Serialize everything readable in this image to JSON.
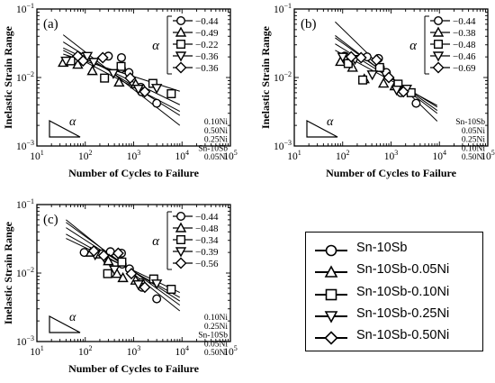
{
  "chart_data": [
    {
      "type": "scatter",
      "panel_label": "(a)",
      "xlabel": "Number of Cycles to Failure",
      "ylabel": "Inelastic Strain Range",
      "xscale": "log",
      "yscale": "log",
      "xlim": [
        10,
        100000
      ],
      "ylim": [
        0.001,
        0.1
      ],
      "xticks": [
        "10^1",
        "10^2",
        "10^3",
        "10^4",
        "10^5"
      ],
      "yticks": [
        "10^-3",
        "10^-2",
        "10^-1"
      ],
      "alpha_symbol": "α",
      "alpha_values": [
        "−0.44",
        "−0.49",
        "−0.22",
        "−0.36",
        "−0.36"
      ],
      "line_labels": [
        "0.10Ni",
        "0.50Ni",
        "0.25Ni",
        "Sn-10Sb",
        "0.05Ni"
      ],
      "series": [
        {
          "marker": "circle",
          "points": [
            [
              95,
              0.0203
            ],
            [
              300,
              0.0205
            ],
            [
              560,
              0.0195
            ],
            [
              560,
              0.0135
            ],
            [
              800,
              0.0118
            ],
            [
              1400,
              0.0072
            ],
            [
              1450,
              0.0062
            ],
            [
              3000,
              0.0042
            ]
          ]
        },
        {
          "marker": "triangle-up",
          "points": [
            [
              35,
              0.0165
            ],
            [
              70,
              0.0155
            ],
            [
              140,
              0.0125
            ],
            [
              500,
              0.0085
            ],
            [
              1100,
              0.008
            ]
          ]
        },
        {
          "marker": "square",
          "points": [
            [
              50,
              0.0175
            ],
            [
              250,
              0.0098
            ],
            [
              550,
              0.0145
            ],
            [
              2500,
              0.0082
            ],
            [
              6000,
              0.0058
            ]
          ]
        },
        {
          "marker": "triangle-down",
          "points": [
            [
              40,
              0.0175
            ],
            [
              110,
              0.0205
            ],
            [
              150,
              0.0168
            ],
            [
              380,
              0.0115
            ],
            [
              1250,
              0.0068
            ],
            [
              3000,
              0.007
            ]
          ]
        },
        {
          "marker": "diamond",
          "points": [
            [
              70,
              0.0205
            ],
            [
              90,
              0.0175
            ],
            [
              230,
              0.0195
            ],
            [
              850,
              0.0098
            ],
            [
              1700,
              0.0062
            ]
          ]
        }
      ],
      "fit_lines": [
        {
          "label": "0.10Ni",
          "x": [
            35,
            9000
          ],
          "y": [
            0.022,
            0.0063
          ]
        },
        {
          "label": "0.50Ni",
          "x": [
            35,
            9000
          ],
          "y": [
            0.027,
            0.004
          ]
        },
        {
          "label": "0.25Ni",
          "x": [
            35,
            9000
          ],
          "y": [
            0.025,
            0.0032
          ]
        },
        {
          "label": "Sn-10Sb",
          "x": [
            35,
            9000
          ],
          "y": [
            0.033,
            0.0028
          ]
        },
        {
          "label": "0.05Ni",
          "x": [
            35,
            9000
          ],
          "y": [
            0.042,
            0.002
          ]
        }
      ]
    },
    {
      "type": "scatter",
      "panel_label": "(b)",
      "xlabel": "Number of Cycles to Failure",
      "ylabel": "Inelastic Strain Range",
      "xscale": "log",
      "yscale": "log",
      "xlim": [
        10,
        100000
      ],
      "ylim": [
        0.001,
        0.1
      ],
      "xticks": [
        "10^1",
        "10^2",
        "10^3",
        "10^4",
        "10^5"
      ],
      "yticks": [
        "10^-3",
        "10^-2",
        "10^-1"
      ],
      "alpha_symbol": "α",
      "alpha_values": [
        "−0.44",
        "−0.38",
        "−0.48",
        "−0.46",
        "−0.69"
      ],
      "line_labels": [
        "Sn-10Sb",
        "0.05Ni",
        "0.25Ni",
        "0.10Ni",
        "0.50Ni"
      ],
      "series": [
        {
          "marker": "circle",
          "points": [
            [
              110,
              0.0205
            ],
            [
              320,
              0.02
            ],
            [
              550,
              0.019
            ],
            [
              600,
              0.014
            ],
            [
              800,
              0.0118
            ],
            [
              1500,
              0.0068
            ],
            [
              1600,
              0.006
            ],
            [
              3300,
              0.0042
            ]
          ]
        },
        {
          "marker": "triangle-up",
          "points": [
            [
              90,
              0.017
            ],
            [
              160,
              0.014
            ],
            [
              280,
              0.0095
            ],
            [
              700,
              0.0082
            ],
            [
              1200,
              0.0075
            ]
          ]
        },
        {
          "marker": "square",
          "points": [
            [
              130,
              0.016
            ],
            [
              260,
              0.0092
            ],
            [
              580,
              0.014
            ],
            [
              1400,
              0.008
            ],
            [
              2600,
              0.006
            ]
          ]
        },
        {
          "marker": "triangle-down",
          "points": [
            [
              100,
              0.02
            ],
            [
              180,
              0.0185
            ],
            [
              410,
              0.011
            ],
            [
              1300,
              0.0066
            ],
            [
              2100,
              0.0068
            ]
          ]
        },
        {
          "marker": "diamond",
          "points": [
            [
              150,
              0.02
            ],
            [
              240,
              0.0195
            ],
            [
              500,
              0.018
            ],
            [
              900,
              0.01
            ],
            [
              1800,
              0.0062
            ]
          ]
        }
      ],
      "fit_lines": [
        {
          "label": "Sn-10Sb",
          "x": [
            70,
            9000
          ],
          "y": [
            0.031,
            0.0037
          ]
        },
        {
          "label": "0.05Ni",
          "x": [
            70,
            9000
          ],
          "y": [
            0.025,
            0.0039
          ]
        },
        {
          "label": "0.25Ni",
          "x": [
            70,
            9000
          ],
          "y": [
            0.038,
            0.0033
          ]
        },
        {
          "label": "0.10Ni",
          "x": [
            70,
            9000
          ],
          "y": [
            0.041,
            0.003
          ]
        },
        {
          "label": "0.50Ni",
          "x": [
            70,
            9000
          ],
          "y": [
            0.065,
            0.0023
          ]
        }
      ]
    },
    {
      "type": "scatter",
      "panel_label": "(c)",
      "xlabel": "Number of Cycles to Failure",
      "ylabel": "Inelastic Strain Range",
      "xscale": "log",
      "yscale": "log",
      "xlim": [
        10,
        100000
      ],
      "ylim": [
        0.001,
        0.1
      ],
      "xticks": [
        "10^1",
        "10^2",
        "10^3",
        "10^4",
        "10^5"
      ],
      "yticks": [
        "10^-3",
        "10^-2",
        "10^-1"
      ],
      "alpha_symbol": "α",
      "alpha_values": [
        "−0.44",
        "−0.48",
        "−0.34",
        "−0.39",
        "−0.56"
      ],
      "line_labels": [
        "0.10Ni",
        "0.25Ni",
        "Sn-10Sb",
        "0.05Ni",
        "0.50Ni"
      ],
      "series": [
        {
          "marker": "circle",
          "points": [
            [
              95,
              0.02
            ],
            [
              330,
              0.0205
            ],
            [
              560,
              0.0195
            ],
            [
              580,
              0.0135
            ],
            [
              820,
              0.0115
            ],
            [
              1400,
              0.0072
            ],
            [
              1500,
              0.0062
            ],
            [
              3000,
              0.0042
            ]
          ]
        },
        {
          "marker": "triangle-up",
          "points": [
            [
              130,
              0.02
            ],
            [
              300,
              0.015
            ],
            [
              450,
              0.0098
            ],
            [
              600,
              0.0085
            ],
            [
              1100,
              0.0078
            ]
          ]
        },
        {
          "marker": "square",
          "points": [
            [
              200,
              0.019
            ],
            [
              290,
              0.0098
            ],
            [
              570,
              0.0145
            ],
            [
              2600,
              0.0082
            ],
            [
              6000,
              0.0058
            ]
          ]
        },
        {
          "marker": "triangle-down",
          "points": [
            [
              160,
              0.0185
            ],
            [
              250,
              0.0165
            ],
            [
              400,
              0.0112
            ],
            [
              1250,
              0.0068
            ],
            [
              3000,
              0.007
            ]
          ]
        },
        {
          "marker": "diamond",
          "points": [
            [
              150,
              0.021
            ],
            [
              240,
              0.018
            ],
            [
              480,
              0.0195
            ],
            [
              900,
              0.0098
            ],
            [
              1700,
              0.0062
            ]
          ]
        }
      ],
      "fit_lines": [
        {
          "label": "0.10Ni",
          "x": [
            40,
            9000
          ],
          "y": [
            0.032,
            0.0052
          ]
        },
        {
          "label": "0.25Ni",
          "x": [
            40,
            9000
          ],
          "y": [
            0.037,
            0.0044
          ]
        },
        {
          "label": "Sn-10Sb",
          "x": [
            40,
            9000
          ],
          "y": [
            0.046,
            0.0039
          ]
        },
        {
          "label": "0.05Ni",
          "x": [
            40,
            9000
          ],
          "y": [
            0.055,
            0.0034
          ]
        },
        {
          "label": "0.50Ni",
          "x": [
            40,
            9000
          ],
          "y": [
            0.06,
            0.0028
          ]
        }
      ]
    }
  ],
  "legend": {
    "entries": [
      {
        "marker": "circle",
        "label": "Sn-10Sb"
      },
      {
        "marker": "triangle-up",
        "label": "Sn-10Sb-0.05Ni"
      },
      {
        "marker": "square",
        "label": "Sn-10Sb-0.10Ni"
      },
      {
        "marker": "triangle-down",
        "label": "Sn-10Sb-0.25Ni"
      },
      {
        "marker": "diamond",
        "label": "Sn-10Sb-0.50Ni"
      }
    ]
  },
  "colors": {
    "ink": "#000000",
    "background": "#ffffff"
  }
}
